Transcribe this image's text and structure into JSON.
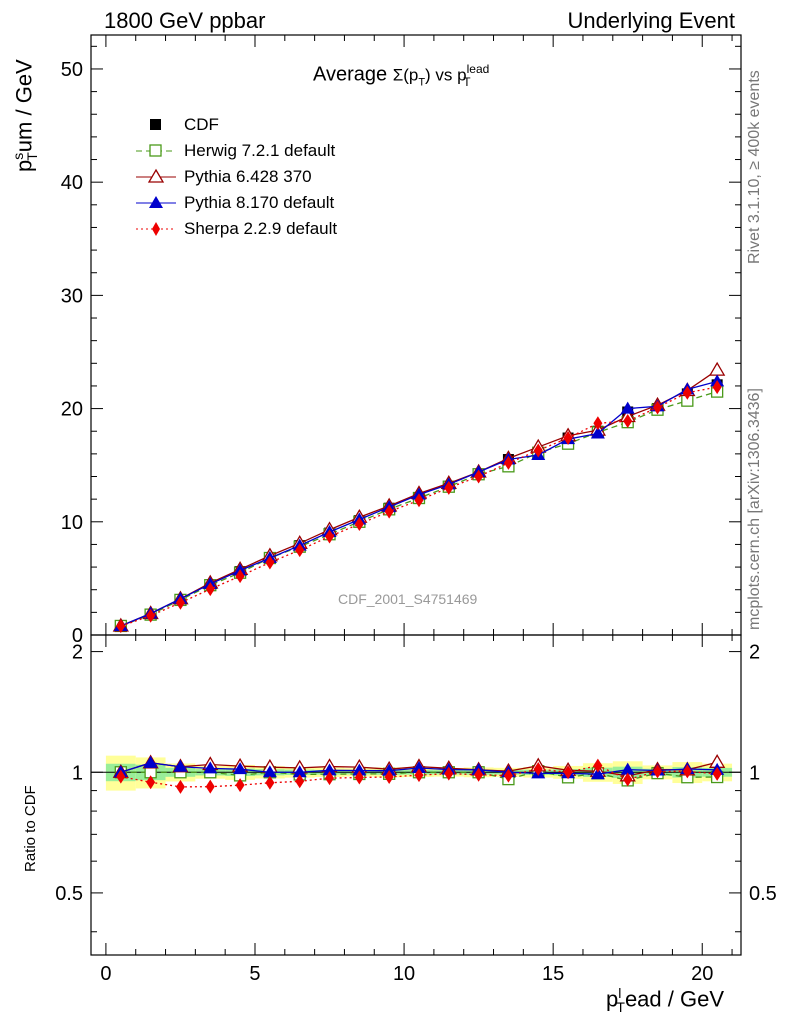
{
  "header": {
    "left": "1800 GeV ppbar",
    "right": "Underlying Event"
  },
  "side_labels": {
    "rivet": "Rivet 3.1.10, ≥ 400k events",
    "mcplots": "mcplots.cern.ch [arXiv:1306.3436]"
  },
  "watermark": "CDF_2001_S4751469",
  "plot_title": {
    "prefix": "Average ",
    "sigma": "Σ(p",
    "sigma_sub": "T",
    "mid": ") vs p",
    "sub": "T",
    "sup": "lead"
  },
  "y_title": {
    "base": "p",
    "sup": "s",
    "sub": "T",
    "rest": "um / GeV"
  },
  "ratio_title": "Ratio to CDF",
  "x_title": {
    "base": "p",
    "sup": "l",
    "sub": "T",
    "rest": "ead / GeV"
  },
  "chart_data": {
    "type": "line",
    "x": [
      0.5,
      1.5,
      2.5,
      3.5,
      4.5,
      5.5,
      6.5,
      7.5,
      8.5,
      9.5,
      10.5,
      11.5,
      12.5,
      13.5,
      14.5,
      15.5,
      16.5,
      17.5,
      18.5,
      19.5,
      20.5
    ],
    "xlim": [
      -0.5,
      21.3
    ],
    "ylim": [
      0,
      53
    ],
    "ratio_ylim": [
      0.35,
      2.2
    ],
    "x_ticks": [
      "0",
      "5",
      "10",
      "15",
      "20"
    ],
    "y_ticks": [
      "0",
      "10",
      "20",
      "30",
      "40",
      "50"
    ],
    "ratio_ticks": [
      "0.5",
      "1",
      "2"
    ],
    "data": {
      "name": "CDF",
      "color": "#000000",
      "values": [
        0.8,
        1.8,
        3.1,
        4.4,
        5.6,
        6.8,
        7.9,
        9.0,
        10.1,
        11.2,
        12.1,
        13.1,
        14.2,
        15.5,
        16.0,
        17.4,
        18.0,
        19.7,
        20.0,
        21.3,
        22.1
      ],
      "errors": [
        0.05,
        0.1,
        0.1,
        0.1,
        0.15,
        0.15,
        0.15,
        0.15,
        0.15,
        0.2,
        0.2,
        0.2,
        0.25,
        0.25,
        0.3,
        0.4,
        0.6,
        0.8,
        0.5,
        0.8,
        0.7
      ]
    },
    "series": [
      {
        "name": "Herwig 7.2.1 default",
        "color": "#4a9a1a",
        "dash": "6,4",
        "marker": "open-square",
        "values": [
          0.8,
          1.8,
          3.1,
          4.4,
          5.5,
          6.8,
          7.8,
          8.9,
          10.0,
          11.1,
          12.1,
          13.1,
          14.2,
          14.9,
          16.1,
          16.9,
          17.9,
          18.8,
          19.9,
          20.7,
          21.5
        ]
      },
      {
        "name": "Pythia 6.428 370",
        "color": "#9a0000",
        "dash": "",
        "marker": "open-triangle",
        "values": [
          0.8,
          1.9,
          3.2,
          4.6,
          5.8,
          7.0,
          8.1,
          9.3,
          10.4,
          11.4,
          12.5,
          13.4,
          14.4,
          15.6,
          16.6,
          17.6,
          18.1,
          19.3,
          20.3,
          21.6,
          23.4
        ]
      },
      {
        "name": "Pythia 8.170 default",
        "color": "#0000cc",
        "dash": "",
        "marker": "triangle",
        "values": [
          0.8,
          1.9,
          3.2,
          4.5,
          5.7,
          6.8,
          7.9,
          9.1,
          10.2,
          11.3,
          12.4,
          13.3,
          14.4,
          15.5,
          15.9,
          17.3,
          17.8,
          20.0,
          20.2,
          21.7,
          22.4
        ]
      },
      {
        "name": "Sherpa 2.2.9 default",
        "color": "#ee0000",
        "dash": "2,3",
        "marker": "diamond",
        "values": [
          0.78,
          1.7,
          2.85,
          4.05,
          5.2,
          6.4,
          7.5,
          8.7,
          9.8,
          10.9,
          11.9,
          13.0,
          14.0,
          15.2,
          16.3,
          17.4,
          18.7,
          18.9,
          20.1,
          21.4,
          21.9
        ]
      }
    ]
  }
}
